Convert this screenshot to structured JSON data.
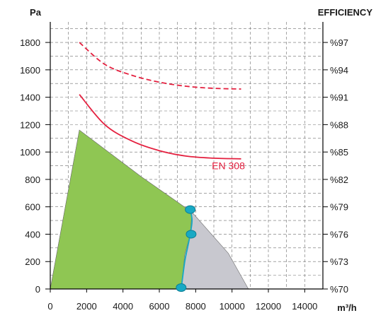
{
  "chart_data": {
    "type": "area",
    "title": "",
    "ylabel": "Pa",
    "y2label": "EFFICIENCY",
    "xlabel": "m³/h",
    "xlim": [
      0,
      15000
    ],
    "ylim": [
      0,
      1950
    ],
    "x_ticks": [
      0,
      2000,
      4000,
      6000,
      8000,
      10000,
      12000,
      14000
    ],
    "x_tick_labels": [
      "0",
      "2000",
      "4000",
      "6000",
      "8000",
      "10000",
      "12000",
      "14000"
    ],
    "y_ticks": [
      0,
      200,
      400,
      600,
      800,
      1000,
      1200,
      1400,
      1600,
      1800
    ],
    "y_tick_labels": [
      "0",
      "200",
      "400",
      "600",
      "800",
      "1000",
      "1200",
      "1400",
      "1600",
      "1800"
    ],
    "y2_tick_labels": [
      "%70",
      "%73",
      "%76",
      "%79",
      "%82",
      "%85",
      "%88",
      "%91",
      "%94",
      "%97"
    ],
    "grid": true,
    "regions": [
      {
        "name": "",
        "color": "#c8c8cf",
        "points": [
          [
            0,
            0
          ],
          [
            1600,
            1160
          ],
          [
            5000,
            820
          ],
          [
            7800,
            560
          ],
          [
            9800,
            260
          ],
          [
            10900,
            0
          ]
        ]
      },
      {
        "name": "",
        "color": "#8fc653",
        "points": [
          [
            0,
            0
          ],
          [
            1600,
            1160
          ],
          [
            5000,
            820
          ],
          [
            7800,
            560
          ],
          [
            7700,
            400
          ],
          [
            7400,
            250
          ],
          [
            7200,
            0
          ]
        ]
      }
    ],
    "series": [
      {
        "name": "",
        "style": "dashed",
        "color": "#e4203f",
        "axis": "efficiency",
        "x": [
          1600,
          3000,
          4500,
          6000,
          7500,
          9000,
          10500
        ],
        "y": [
          1800,
          1640,
          1560,
          1510,
          1480,
          1465,
          1460
        ]
      },
      {
        "name": "EN 308",
        "style": "solid",
        "color": "#e4203f",
        "axis": "efficiency",
        "x": [
          1600,
          3000,
          4500,
          6000,
          7500,
          9000,
          10500
        ],
        "y": [
          1420,
          1200,
          1080,
          1010,
          970,
          955,
          950
        ]
      },
      {
        "name": "",
        "style": "solid",
        "color": "#18a9c4",
        "axis": "pressure",
        "x": [
          7700,
          7800,
          7700,
          7550,
          7400,
          7200
        ],
        "y": [
          580,
          500,
          400,
          300,
          200,
          0
        ]
      }
    ],
    "markers": [
      {
        "x": 7700,
        "y": 580
      },
      {
        "x": 7750,
        "y": 400
      },
      {
        "x": 7200,
        "y": 10
      }
    ],
    "annotations": [
      {
        "text": "EN 308",
        "x": 9800,
        "y": 900
      }
    ],
    "colors": {
      "green_area": "#8fc653",
      "grey_area": "#c8c8cf",
      "efficiency_line": "#e4203f",
      "operating_line": "#18a9c4"
    }
  }
}
